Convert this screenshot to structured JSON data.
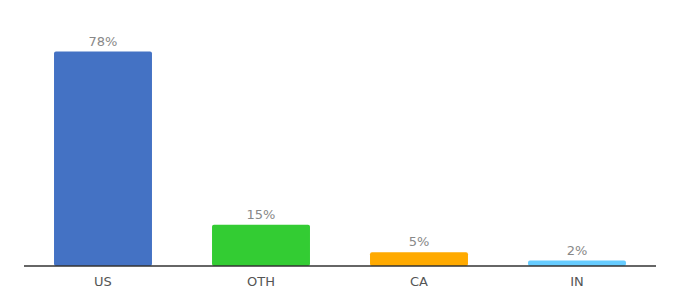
{
  "chart_data": {
    "type": "bar",
    "categories": [
      "US",
      "OTH",
      "CA",
      "IN"
    ],
    "values": [
      78,
      15,
      5,
      2
    ],
    "value_labels": [
      "78%",
      "15%",
      "5%",
      "2%"
    ],
    "colors": [
      "#4472c4",
      "#33cc33",
      "#ffaa00",
      "#66ccff"
    ],
    "ylim": [
      0,
      88
    ],
    "data_labels": true,
    "tick_labels": "x",
    "grid": false
  }
}
